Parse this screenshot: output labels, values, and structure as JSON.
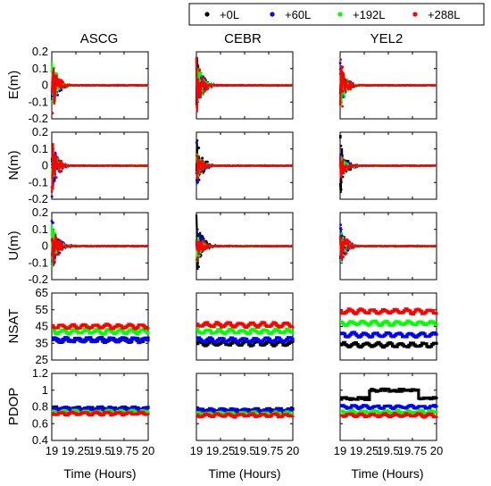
{
  "chart_data": {
    "type": "line",
    "legend": {
      "placement": "top-right",
      "entries": [
        {
          "label": "+0L",
          "color": "#000000"
        },
        {
          "label": "+60L",
          "color": "#0000ff"
        },
        {
          "label": "+192L",
          "color": "#00ff00"
        },
        {
          "label": "+288L",
          "color": "#ff0000"
        }
      ]
    },
    "columns": [
      "ASCG",
      "CEBR",
      "YEL2"
    ],
    "xlabel": "Time (Hours)",
    "xlim": [
      19,
      20
    ],
    "xticks": [
      "19",
      "19.25",
      "19.5",
      "19.75",
      "20"
    ],
    "rows": [
      {
        "ylabel": "E(m)",
        "ylim": [
          -0.2,
          0.2
        ],
        "yticks": [
          "0.2",
          "0.1",
          "0",
          "-0.1",
          "-0.2"
        ]
      },
      {
        "ylabel": "N(m)",
        "ylim": [
          -0.2,
          0.2
        ],
        "yticks": [
          "0.2",
          "0.1",
          "0",
          "-0.1",
          "-0.2"
        ]
      },
      {
        "ylabel": "U(m)",
        "ylim": [
          -0.2,
          0.2
        ],
        "yticks": [
          "0.2",
          "0.1",
          "0",
          "-0.1",
          "-0.2"
        ]
      },
      {
        "ylabel": "NSAT",
        "ylim": [
          25,
          65
        ],
        "yticks": [
          "65",
          "55",
          "45",
          "35",
          "25"
        ]
      },
      {
        "ylabel": "PDOP",
        "ylim": [
          0.4,
          1.2
        ],
        "yticks": [
          "1.2",
          "1",
          "0.8",
          "0.6",
          "0.4"
        ]
      }
    ],
    "nsat_levels": {
      "ASCG": [
        37,
        37,
        42,
        45
      ],
      "CEBR": [
        35,
        37,
        42,
        46
      ],
      "YEL2": [
        34,
        40,
        47,
        54
      ]
    },
    "pdop_levels": {
      "ASCG": [
        0.78,
        0.78,
        0.74,
        0.72
      ],
      "CEBR": [
        0.76,
        0.76,
        0.72,
        0.7
      ],
      "YEL2": [
        0.9,
        0.8,
        0.74,
        0.7
      ]
    },
    "convergence_amplitude": {
      "E": {
        "ASCG": [
          0.08,
          0.18,
          0.18,
          0.2
        ],
        "CEBR": [
          0.2,
          0.2,
          0.2,
          0.2
        ],
        "YEL2": [
          0.12,
          0.15,
          0.18,
          0.2
        ]
      },
      "N": {
        "ASCG": [
          0.05,
          0.2,
          0.15,
          0.18
        ],
        "CEBR": [
          0.2,
          0.15,
          0.1,
          0.1
        ],
        "YEL2": [
          0.2,
          0.1,
          0.08,
          0.1
        ]
      },
      "U": {
        "ASCG": [
          0.15,
          0.2,
          0.15,
          0.2
        ],
        "CEBR": [
          0.2,
          0.15,
          0.1,
          0.1
        ],
        "YEL2": [
          0.1,
          0.15,
          0.1,
          0.15
        ]
      }
    }
  }
}
